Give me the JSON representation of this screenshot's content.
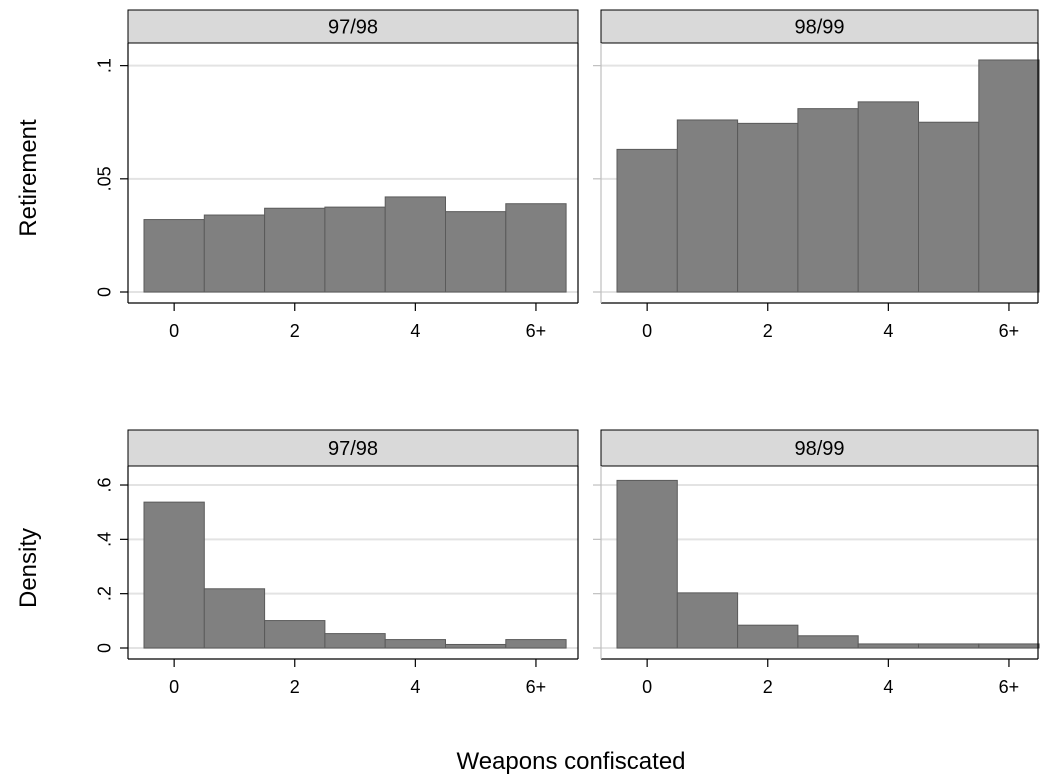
{
  "chart_data": {
    "type": "bar",
    "xlabel": "Weapons confiscated",
    "x_tick_labels": [
      "0",
      "2",
      "4",
      "6+"
    ],
    "categories": [
      "0",
      "1",
      "2",
      "3",
      "4",
      "5",
      "6+"
    ],
    "columns": [
      "97/98",
      "98/99"
    ],
    "colors": {
      "bar_fill": "#808080",
      "bar_stroke": "#5a5a5a",
      "strip_fill": "#d9d9d9",
      "gridline": "#e3e3e3"
    },
    "rows": [
      {
        "ylabel": "Retirement",
        "ylim": [
          0,
          0.11
        ],
        "y_ticks": [
          0,
          0.05,
          0.1
        ],
        "y_tick_labels": [
          "0",
          ".05",
          ".1"
        ],
        "panels": [
          {
            "label": "97/98",
            "values": [
              0.032,
              0.034,
              0.037,
              0.0375,
              0.042,
              0.0355,
              0.039
            ]
          },
          {
            "label": "98/99",
            "values": [
              0.063,
              0.076,
              0.0745,
              0.081,
              0.084,
              0.075,
              0.1025
            ]
          }
        ]
      },
      {
        "ylabel": "Density",
        "ylim": [
          0,
          0.67
        ],
        "y_ticks": [
          0,
          0.2,
          0.4,
          0.6
        ],
        "y_tick_labels": [
          "0",
          ".2",
          ".4",
          ".6"
        ],
        "panels": [
          {
            "label": "97/98",
            "values": [
              0.537,
              0.218,
              0.101,
              0.053,
              0.031,
              0.013,
              0.031
            ]
          },
          {
            "label": "98/99",
            "values": [
              0.617,
              0.203,
              0.084,
              0.045,
              0.015,
              0.015,
              0.015
            ]
          }
        ]
      }
    ]
  }
}
